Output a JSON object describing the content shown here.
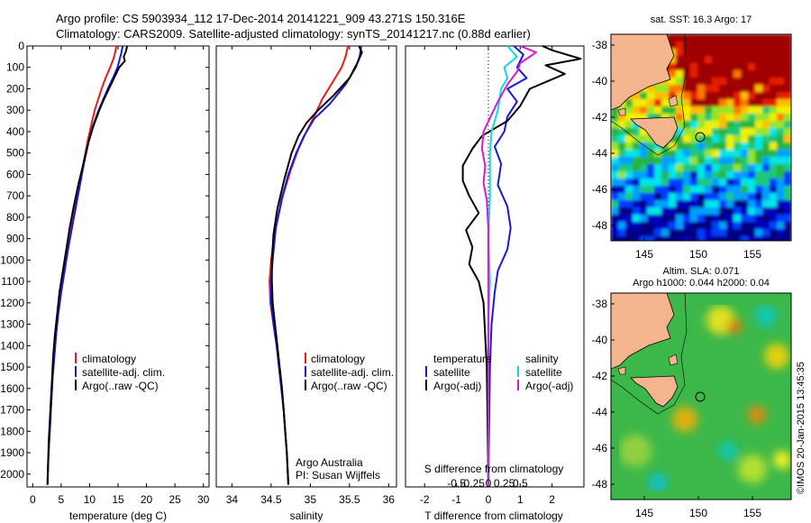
{
  "header": {
    "line1": "Argo profile: CS 5903934_112 17-Dec-2014 20141221_909 43.271S 150.316E",
    "line2": "Climatology: CARS2009. Satellite-adjusted climatology: synTS_20141217.nc (0.88d earlier)"
  },
  "colors": {
    "climatology": "#e81c1c",
    "satellite": "#1a1ad6",
    "argo": "#000000",
    "satellite_salinity": "#12d6e0",
    "argo_salinity": "#d61ad6"
  },
  "chart_data": [
    {
      "type": "line",
      "id": "temperature",
      "xlabel": "temperature (deg C)",
      "xlim": [
        -1,
        31
      ],
      "xticks": [
        0,
        5,
        10,
        15,
        20,
        25,
        30
      ],
      "ylim": [
        2060,
        0
      ],
      "yticks": [
        0,
        100,
        200,
        300,
        400,
        500,
        600,
        700,
        800,
        900,
        1000,
        1100,
        1200,
        1300,
        1400,
        1500,
        1600,
        1700,
        1800,
        1900,
        2000
      ],
      "legend": [
        "climatology",
        "satellite-adj. clim.",
        "Argo(..raw -QC)"
      ],
      "series": [
        {
          "name": "climatology",
          "color": "climatology",
          "points": [
            [
              14.7,
              0
            ],
            [
              14.5,
              30
            ],
            [
              14.2,
              60
            ],
            [
              13.6,
              100
            ],
            [
              12.8,
              150
            ],
            [
              12.1,
              200
            ],
            [
              11.5,
              250
            ],
            [
              10.9,
              300
            ],
            [
              10.2,
              380
            ],
            [
              9.6,
              450
            ],
            [
              8.9,
              550
            ],
            [
              8.2,
              650
            ],
            [
              7.5,
              750
            ],
            [
              6.8,
              850
            ],
            [
              6.2,
              950
            ],
            [
              5.6,
              1050
            ],
            [
              5.0,
              1150
            ],
            [
              4.5,
              1250
            ],
            [
              4.1,
              1350
            ],
            [
              3.8,
              1450
            ],
            [
              3.5,
              1550
            ],
            [
              3.3,
              1650
            ],
            [
              3.1,
              1750
            ],
            [
              2.9,
              1850
            ],
            [
              2.7,
              1950
            ],
            [
              2.6,
              2050
            ]
          ]
        },
        {
          "name": "satellite-adj. clim.",
          "color": "satellite",
          "points": [
            [
              15.8,
              0
            ],
            [
              15.6,
              30
            ],
            [
              15.3,
              60
            ],
            [
              14.9,
              100
            ],
            [
              14.1,
              150
            ],
            [
              13.2,
              200
            ],
            [
              12.4,
              250
            ],
            [
              11.6,
              300
            ],
            [
              10.5,
              380
            ],
            [
              9.8,
              450
            ],
            [
              9.0,
              550
            ],
            [
              8.3,
              650
            ],
            [
              7.6,
              750
            ],
            [
              6.9,
              850
            ],
            [
              6.2,
              950
            ],
            [
              5.6,
              1050
            ],
            [
              5.0,
              1150
            ],
            [
              4.5,
              1250
            ],
            [
              4.1,
              1350
            ],
            [
              3.8,
              1450
            ],
            [
              3.5,
              1550
            ],
            [
              3.3,
              1650
            ],
            [
              3.1,
              1750
            ],
            [
              2.9,
              1850
            ],
            [
              2.7,
              1950
            ],
            [
              2.6,
              2050
            ]
          ]
        },
        {
          "name": "Argo(..raw -QC)",
          "color": "argo",
          "points": [
            [
              16.6,
              0
            ],
            [
              16.4,
              25
            ],
            [
              16.0,
              50
            ],
            [
              16.2,
              70
            ],
            [
              15.2,
              100
            ],
            [
              14.3,
              150
            ],
            [
              13.4,
              200
            ],
            [
              12.5,
              250
            ],
            [
              11.7,
              300
            ],
            [
              10.6,
              380
            ],
            [
              9.8,
              450
            ],
            [
              8.9,
              550
            ],
            [
              8.0,
              650
            ],
            [
              7.2,
              750
            ],
            [
              6.5,
              850
            ],
            [
              5.9,
              950
            ],
            [
              5.3,
              1050
            ],
            [
              4.7,
              1150
            ],
            [
              4.3,
              1250
            ],
            [
              3.9,
              1350
            ],
            [
              3.6,
              1450
            ],
            [
              3.4,
              1550
            ],
            [
              3.2,
              1650
            ],
            [
              3.0,
              1750
            ],
            [
              2.8,
              1850
            ],
            [
              2.7,
              1950
            ],
            [
              2.6,
              2050
            ]
          ]
        }
      ]
    },
    {
      "type": "line",
      "id": "salinity",
      "xlabel": "salinity",
      "xlim": [
        33.8,
        36.1
      ],
      "xticks": [
        34,
        34.5,
        35,
        35.5,
        36
      ],
      "ylim": [
        2060,
        0
      ],
      "legend": [
        "climatology",
        "satellite-adj. clim.",
        "Argo(..raw -QC)"
      ],
      "annotation": [
        "Argo Australia",
        "PI: Susan Wijffels"
      ],
      "series": [
        {
          "name": "climatology",
          "color": "climatology",
          "points": [
            [
              35.48,
              0
            ],
            [
              35.45,
              50
            ],
            [
              35.4,
              100
            ],
            [
              35.3,
              160
            ],
            [
              35.15,
              250
            ],
            [
              35.05,
              330
            ],
            [
              34.95,
              400
            ],
            [
              34.85,
              480
            ],
            [
              34.75,
              580
            ],
            [
              34.65,
              700
            ],
            [
              34.56,
              850
            ],
            [
              34.5,
              1000
            ],
            [
              34.48,
              1100
            ],
            [
              34.49,
              1200
            ],
            [
              34.53,
              1300
            ],
            [
              34.57,
              1400
            ],
            [
              34.6,
              1500
            ],
            [
              34.63,
              1600
            ],
            [
              34.66,
              1700
            ],
            [
              34.68,
              1800
            ],
            [
              34.7,
              1900
            ],
            [
              34.72,
              2050
            ]
          ]
        },
        {
          "name": "satellite-adj. clim.",
          "color": "satellite",
          "points": [
            [
              35.65,
              0
            ],
            [
              35.63,
              50
            ],
            [
              35.58,
              100
            ],
            [
              35.45,
              180
            ],
            [
              35.25,
              270
            ],
            [
              35.05,
              340
            ],
            [
              34.92,
              420
            ],
            [
              34.82,
              500
            ],
            [
              34.72,
              600
            ],
            [
              34.63,
              720
            ],
            [
              34.56,
              850
            ],
            [
              34.52,
              1000
            ],
            [
              34.5,
              1100
            ],
            [
              34.5,
              1200
            ],
            [
              34.53,
              1300
            ],
            [
              34.57,
              1400
            ],
            [
              34.6,
              1500
            ],
            [
              34.63,
              1600
            ],
            [
              34.66,
              1700
            ],
            [
              34.68,
              1800
            ],
            [
              34.7,
              1900
            ],
            [
              34.72,
              2050
            ]
          ]
        },
        {
          "name": "Argo(..raw -QC)",
          "color": "argo",
          "points": [
            [
              35.62,
              0
            ],
            [
              35.66,
              30
            ],
            [
              35.6,
              80
            ],
            [
              35.5,
              150
            ],
            [
              35.3,
              230
            ],
            [
              35.1,
              300
            ],
            [
              34.95,
              360
            ],
            [
              34.85,
              420
            ],
            [
              34.76,
              500
            ],
            [
              34.67,
              620
            ],
            [
              34.58,
              760
            ],
            [
              34.53,
              880
            ],
            [
              34.51,
              1000
            ],
            [
              34.51,
              1100
            ],
            [
              34.52,
              1200
            ],
            [
              34.55,
              1300
            ],
            [
              34.58,
              1400
            ],
            [
              34.61,
              1500
            ],
            [
              34.64,
              1600
            ],
            [
              34.66,
              1700
            ],
            [
              34.68,
              1800
            ],
            [
              34.7,
              1900
            ],
            [
              34.72,
              2050
            ]
          ]
        }
      ]
    },
    {
      "type": "line",
      "id": "difference",
      "xlabel": "T difference from climatology",
      "xlim": [
        -2.6,
        3
      ],
      "xticks": [
        -2,
        -1,
        0,
        1,
        2
      ],
      "xticks_top_label": "S difference from climatology",
      "xticks_top": [
        [
          "-0.5",
          -0.5
        ],
        [
          "-0.25",
          -0.25
        ],
        [
          "0",
          0
        ],
        [
          "0.25",
          0.25
        ],
        [
          "0.5",
          0.5
        ]
      ],
      "ylim": [
        2060,
        0
      ],
      "legend_left_title": "temperature",
      "legend_left": [
        "satellite",
        "Argo(-adj)"
      ],
      "legend_right_title": "salinity",
      "legend_right": [
        "satellite",
        "Argo(-adj)"
      ],
      "series": [
        {
          "name": "temperature satellite",
          "color": "satellite",
          "points": [
            [
              0.8,
              0
            ],
            [
              1.1,
              40
            ],
            [
              0.9,
              100
            ],
            [
              1.2,
              150
            ],
            [
              0.6,
              200
            ],
            [
              0.9,
              260
            ],
            [
              0.6,
              330
            ],
            [
              0.5,
              400
            ],
            [
              0.2,
              470
            ],
            [
              0.4,
              550
            ],
            [
              0.3,
              650
            ],
            [
              0.6,
              750
            ],
            [
              0.7,
              850
            ],
            [
              0.6,
              950
            ],
            [
              0.3,
              1050
            ],
            [
              0.2,
              1150
            ],
            [
              0.1,
              1300
            ],
            [
              0.05,
              1500
            ],
            [
              0.0,
              2050
            ]
          ]
        },
        {
          "name": "temperature Argo(-adj)",
          "color": "argo",
          "points": [
            [
              1.7,
              0
            ],
            [
              2.0,
              20
            ],
            [
              2.9,
              60
            ],
            [
              1.8,
              90
            ],
            [
              2.4,
              130
            ],
            [
              1.3,
              200
            ],
            [
              1.0,
              280
            ],
            [
              0.6,
              350
            ],
            [
              -0.2,
              420
            ],
            [
              -0.5,
              480
            ],
            [
              -0.8,
              560
            ],
            [
              -0.8,
              630
            ],
            [
              -0.6,
              700
            ],
            [
              -0.3,
              780
            ],
            [
              -0.7,
              860
            ],
            [
              -0.5,
              940
            ],
            [
              -0.6,
              1020
            ],
            [
              -0.3,
              1100
            ],
            [
              -0.15,
              1200
            ],
            [
              -0.1,
              1350
            ],
            [
              -0.05,
              1500
            ],
            [
              0.0,
              2050
            ]
          ]
        },
        {
          "name": "salinity satellite",
          "color": "satellite_salinity",
          "points": [
            [
              0.6,
              0
            ],
            [
              0.9,
              50
            ],
            [
              0.5,
              100
            ],
            [
              0.6,
              150
            ],
            [
              0.4,
              200
            ],
            [
              0.3,
              300
            ],
            [
              0.1,
              400
            ],
            [
              0.05,
              500
            ],
            [
              0.05,
              700
            ],
            [
              0.0,
              900
            ],
            [
              0.05,
              1100
            ],
            [
              0.0,
              1300
            ],
            [
              0.0,
              2050
            ]
          ]
        },
        {
          "name": "salinity Argo(-adj)",
          "color": "argo_salinity",
          "points": [
            [
              1.0,
              0
            ],
            [
              1.5,
              30
            ],
            [
              1.0,
              80
            ],
            [
              0.9,
              120
            ],
            [
              0.6,
              180
            ],
            [
              0.3,
              260
            ],
            [
              0.1,
              320
            ],
            [
              -0.15,
              400
            ],
            [
              -0.2,
              480
            ],
            [
              -0.1,
              560
            ],
            [
              -0.15,
              640
            ],
            [
              -0.05,
              720
            ],
            [
              0.0,
              850
            ],
            [
              0.0,
              2050
            ]
          ]
        }
      ]
    }
  ],
  "maps": {
    "sst": {
      "title": "sat. SST: 16.3 Argo: 17",
      "yticks": [
        "-38",
        "-40",
        "-42",
        "-44",
        "-46",
        "-48"
      ],
      "xticks": [
        "145",
        "150",
        "155"
      ]
    },
    "sla": {
      "title_line1": "Altim. SLA: 0.071",
      "title_line2": "Argo h1000: 0.044 h2000: 0.04",
      "yticks": [
        "-38",
        "-40",
        "-42",
        "-44",
        "-46",
        "-48"
      ],
      "xticks": [
        "145",
        "150",
        "155"
      ]
    }
  },
  "watermark": "©IMOS 20-Jan-2015 13:45:35"
}
